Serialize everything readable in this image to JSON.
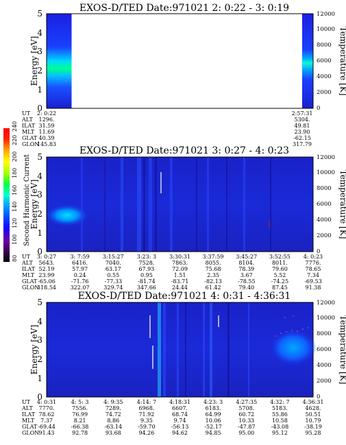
{
  "colorbar": {
    "label": "Second Harmonic Current",
    "ticks": [
      "80",
      "100",
      "120",
      "140",
      "160",
      "180",
      "200",
      "220",
      "240"
    ],
    "colors": [
      "#000000",
      "#3a0050",
      "#6a00a8",
      "#1a00ff",
      "#0050ff",
      "#00a0ff",
      "#00ffd0",
      "#00ff40",
      "#a0ff00",
      "#ffff00",
      "#ffa000",
      "#ff2000",
      "#ff0000"
    ]
  },
  "panels": [
    {
      "title": "EXOS-D/TED   Date:971021  2: 0:22 - 3: 0:19",
      "ylabel_left": "Energy [eV]",
      "ylabel_right": "Temperature [K]",
      "yticks_left": [
        "0",
        "1",
        "2",
        "3",
        "4",
        "5"
      ],
      "yticks_right": [
        "0",
        "2000",
        "4000",
        "6000",
        "8000",
        "10000",
        "12000"
      ],
      "row_labels": [
        "UT",
        "ALT",
        "ILAT",
        "MLT",
        "GLAT",
        "GLON"
      ],
      "columns": [
        {
          "UT": "2: 0:22",
          "ALT": "1296.",
          "ILAT": "31.59",
          "MLT": "11.69",
          "GLAT": "40.39",
          "GLON": "145.83"
        },
        {
          "UT": "2:57:31",
          "ALT": "5304.",
          "ILAT": "49.81",
          "MLT": "23.90",
          "GLAT": "-62.15",
          "GLON": "317.79"
        }
      ]
    },
    {
      "title": "EXOS-D/TED   Date:971021  3: 0:27 - 4: 0:23",
      "ylabel_left": "Energy [eV]",
      "ylabel_right": "Temperature [K]",
      "yticks_left": [
        "0",
        "1",
        "2",
        "3",
        "4",
        "5"
      ],
      "yticks_right": [
        "0",
        "2000",
        "4000",
        "6000",
        "8000",
        "10000",
        "12000"
      ],
      "row_labels": [
        "UT",
        "ALT",
        "ILAT",
        "MLT",
        "GLAT",
        "GLON"
      ],
      "columns": [
        {
          "UT": "3: 0:27",
          "ALT": "5643.",
          "ILAT": "52.19",
          "MLT": "23.99",
          "GLAT": "-65.06",
          "GLON": "318.54"
        },
        {
          "UT": "3: 7:59",
          "ALT": "6416.",
          "ILAT": "57.97",
          "MLT": "0.24",
          "GLAT": "-71.76",
          "GLON": "322.07"
        },
        {
          "UT": "3:15:27",
          "ALT": "7040.",
          "ILAT": "63.17",
          "MLT": "0.55",
          "GLAT": "-77.33",
          "GLON": "329.74"
        },
        {
          "UT": "3:23: 3",
          "ALT": "7528.",
          "ILAT": "67.93",
          "MLT": "0.95",
          "GLAT": "-81.74",
          "GLON": "347.66"
        },
        {
          "UT": "3:30:31",
          "ALT": "7863.",
          "ILAT": "72.09",
          "MLT": "1.51",
          "GLAT": "-83.71",
          "GLON": "24.44"
        },
        {
          "UT": "3:37:59",
          "ALT": "8055.",
          "ILAT": "75.68",
          "MLT": "2.35",
          "GLAT": "-82.13",
          "GLON": "61.42"
        },
        {
          "UT": "3:45:27",
          "ALT": "8104.",
          "ILAT": "78.39",
          "MLT": "3.67",
          "GLAT": "-78.55",
          "GLON": "79.40"
        },
        {
          "UT": "3:52:55",
          "ALT": "8011.",
          "ILAT": "79.60",
          "MLT": "5.52",
          "GLAT": "-74.25",
          "GLON": "87.45"
        },
        {
          "UT": "4: 0:23",
          "ALT": "7776.",
          "ILAT": "78.65",
          "MLT": "7.34",
          "GLAT": "-69.53",
          "GLON": "91.38"
        }
      ]
    },
    {
      "title": "EXOS-D/TED   Date:971021  4: 0:31 - 4:36:31",
      "ylabel_left": "Energy [eV]",
      "ylabel_right": "Temperature [K]",
      "yticks_left": [
        "0",
        "1",
        "2",
        "3",
        "4",
        "5"
      ],
      "yticks_right": [
        "0",
        "2000",
        "4000",
        "6000",
        "8000",
        "10000",
        "12000"
      ],
      "row_labels": [
        "UT",
        "ALT",
        "ILAT",
        "MLT",
        "GLAT",
        "GLON"
      ],
      "columns": [
        {
          "UT": "4: 0:31",
          "ALT": "7770.",
          "ILAT": "78.62",
          "MLT": "7.37",
          "GLAT": "-69.44",
          "GLON": "91.43"
        },
        {
          "UT": "4: 5: 3",
          "ALT": "7556.",
          "ILAT": "76.99",
          "MLT": "8.21",
          "GLAT": "-66.38",
          "GLON": "92.78"
        },
        {
          "UT": "4: 9:35",
          "ALT": "7289.",
          "ILAT": "74.72",
          "MLT": "8.86",
          "GLAT": "-63.14",
          "GLON": "93.68"
        },
        {
          "UT": "4:14: 7",
          "ALT": "6968.",
          "ILAT": "71.92",
          "MLT": "9.35",
          "GLAT": "-59.70",
          "GLON": "94.26"
        },
        {
          "UT": "4:18:31",
          "ALT": "6607.",
          "ILAT": "68.74",
          "MLT": "9.74",
          "GLAT": "-56.13",
          "GLON": "94.62"
        },
        {
          "UT": "4:23: 3",
          "ALT": "6183.",
          "ILAT": "64.99",
          "MLT": "10.06",
          "GLAT": "-52.17",
          "GLON": "94.85"
        },
        {
          "UT": "4:27:35",
          "ALT": "5708.",
          "ILAT": "60.72",
          "MLT": "10.33",
          "GLAT": "-47.87",
          "GLON": "95.00"
        },
        {
          "UT": "4:32: 7",
          "ALT": "5183.",
          "ILAT": "55.86",
          "MLT": "10.58",
          "GLAT": "-43.08",
          "GLON": "95.12"
        },
        {
          "UT": "4:36:31",
          "ALT": "4628.",
          "ILAT": "50.51",
          "MLT": "10.79",
          "GLAT": "-38.19",
          "GLON": "95.28"
        }
      ]
    }
  ],
  "chart_data": [
    {
      "type": "heatmap",
      "title": "EXOS-D/TED   Date:971021  2: 0:22 - 3: 0:19",
      "ylabel": "Energy [eV]",
      "ylim": [
        0,
        5
      ],
      "ylabel_right": "Temperature [K]",
      "ylim_right": [
        0,
        12000
      ],
      "x_range": [
        "2: 0:22",
        "2:57:31"
      ],
      "data_coverage": "data only at start (2:00:22 - ~2:06) and end (~2:56 - 2:57:31); gap in between",
      "colorbar_range": [
        80,
        240
      ]
    },
    {
      "type": "heatmap",
      "title": "EXOS-D/TED   Date:971021  3: 0:27 - 4: 0:23",
      "ylabel": "Energy [eV]",
      "ylim": [
        0,
        5
      ],
      "ylabel_right": "Temperature [K]",
      "ylim_right": [
        0,
        12000
      ],
      "x_range": [
        "3: 0:27",
        "4: 0:23"
      ],
      "data_coverage": "continuous",
      "colorbar_range": [
        80,
        240
      ]
    },
    {
      "type": "heatmap",
      "title": "EXOS-D/TED   Date:971021  4: 0:31 - 4:36:31",
      "ylabel": "Energy [eV]",
      "ylim": [
        0,
        5
      ],
      "ylabel_right": "Temperature [K]",
      "ylim_right": [
        0,
        12000
      ],
      "x_range": [
        "4: 0:31",
        "4:36:31"
      ],
      "data_coverage": "continuous",
      "colorbar_range": [
        80,
        240
      ]
    }
  ]
}
